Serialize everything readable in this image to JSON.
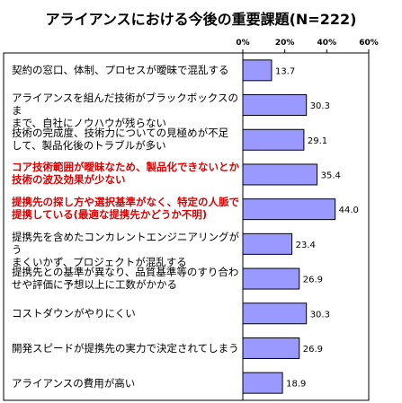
{
  "chart_data": {
    "type": "bar",
    "orientation": "horizontal",
    "title": "アライアンスにおける今後の重要課題(N=222)",
    "xlim": [
      0,
      60
    ],
    "ticks": [
      "0%",
      "20%",
      "40%",
      "60%"
    ],
    "tick_values": [
      0,
      20,
      40,
      60
    ],
    "categories": [
      {
        "lines": [
          "契約の窓口、体制、プロセスが曖昧で混乱する"
        ],
        "highlight": false
      },
      {
        "lines": [
          "アライアンスを組んだ技術がブラックボックスのま",
          "まで、自社にノウハウが残らない"
        ],
        "highlight": false
      },
      {
        "lines": [
          "技術の完成度、技術力についての見極めが不足",
          "して、製品化後のトラブルが多い"
        ],
        "highlight": false
      },
      {
        "lines": [
          "コア技術範囲が曖昧なため、製品化できないとか",
          "技術の波及効果が少ない"
        ],
        "highlight": true
      },
      {
        "lines": [
          "提携先の探し方や選択基準がなく、特定の人脈で",
          "提携している(最適な提携先かどうか不明)"
        ],
        "highlight": true
      },
      {
        "lines": [
          "提携先を含めたコンカレントエンジニアリングがう",
          "まくいかず、プロジェクトが混乱する"
        ],
        "highlight": false
      },
      {
        "lines": [
          "提携先との基準が異なり、品質基準等のすり合わ",
          "せや評価に予想以上に工数がかかる"
        ],
        "highlight": false
      },
      {
        "lines": [
          "コストダウンがやりにくい"
        ],
        "highlight": false
      },
      {
        "lines": [
          "開発スピードが提携先の実力で決定されてしまう"
        ],
        "highlight": false
      },
      {
        "lines": [
          "アライアンスの費用が高い"
        ],
        "highlight": false
      }
    ],
    "values": [
      13.7,
      30.3,
      29.1,
      35.4,
      44.0,
      23.4,
      26.9,
      30.3,
      26.9,
      18.9
    ],
    "value_labels": [
      "13.7",
      "30.3",
      "29.1",
      "35.4",
      "44.0",
      "23.4",
      "26.9",
      "30.3",
      "26.9",
      "18.9"
    ],
    "bar_color": "#9999ff",
    "bar_edge": "#000000",
    "highlight_color": "#e00000",
    "grid": false
  }
}
